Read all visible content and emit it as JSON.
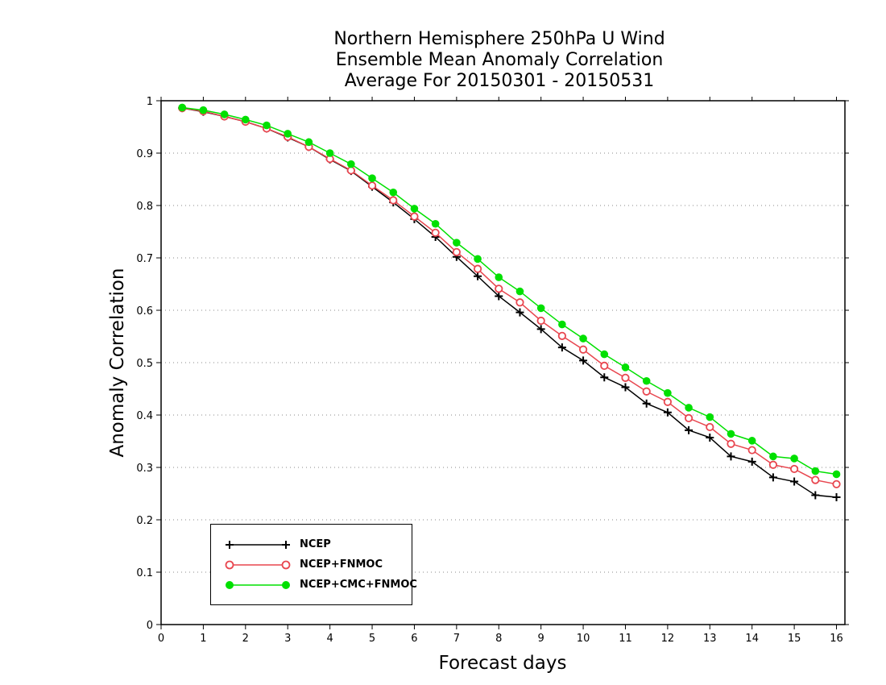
{
  "chart_data": {
    "type": "line",
    "title": [
      "Northern Hemisphere 250hPa U Wind",
      "Ensemble Mean Anomaly Correlation",
      "Average For 20150301 - 20150531"
    ],
    "xlabel": "Forecast days",
    "ylabel": "Anomaly Correlation",
    "xlim": [
      0,
      16.2
    ],
    "ylim": [
      0,
      1
    ],
    "xticks": [
      0,
      1,
      2,
      3,
      4,
      5,
      6,
      7,
      8,
      9,
      10,
      11,
      12,
      13,
      14,
      15,
      16
    ],
    "yticks": [
      0,
      0.1,
      0.2,
      0.3,
      0.4,
      0.5,
      0.6,
      0.7,
      0.8,
      0.9,
      1
    ],
    "ytick_labels": [
      "0",
      "0.1",
      "0.2",
      "0.3",
      "0.4",
      "0.5",
      "0.6",
      "0.7",
      "0.8",
      "0.9",
      "1"
    ],
    "grid": "horizontal dotted",
    "legend_position": "bottom-left",
    "x": [
      0.5,
      1,
      1.5,
      2,
      2.5,
      3,
      3.5,
      4,
      4.5,
      5,
      5.5,
      6,
      6.5,
      7,
      7.5,
      8,
      8.5,
      9,
      9.5,
      10,
      10.5,
      11,
      11.5,
      12,
      12.5,
      13,
      13.5,
      14,
      14.5,
      15,
      15.5,
      16
    ],
    "series": [
      {
        "name": "NCEP",
        "color": "#000000",
        "marker": "plus",
        "values": [
          0.986,
          0.979,
          0.97,
          0.96,
          0.947,
          0.93,
          0.912,
          0.888,
          0.866,
          0.836,
          0.806,
          0.774,
          0.74,
          0.702,
          0.665,
          0.627,
          0.596,
          0.564,
          0.529,
          0.504,
          0.472,
          0.453,
          0.422,
          0.405,
          0.371,
          0.357,
          0.321,
          0.311,
          0.281,
          0.273,
          0.247,
          0.243
        ]
      },
      {
        "name": "NCEP+FNMOC",
        "color": "#e8464f",
        "marker": "open-circle",
        "values": [
          0.986,
          0.98,
          0.97,
          0.96,
          0.947,
          0.931,
          0.912,
          0.889,
          0.867,
          0.838,
          0.81,
          0.779,
          0.748,
          0.711,
          0.679,
          0.641,
          0.615,
          0.58,
          0.551,
          0.525,
          0.494,
          0.471,
          0.445,
          0.425,
          0.394,
          0.377,
          0.345,
          0.333,
          0.305,
          0.297,
          0.276,
          0.268
        ]
      },
      {
        "name": "NCEP+CMC+FNMOC",
        "color": "#00e000",
        "marker": "filled-circle",
        "values": [
          0.987,
          0.982,
          0.974,
          0.964,
          0.953,
          0.937,
          0.921,
          0.9,
          0.879,
          0.852,
          0.825,
          0.794,
          0.765,
          0.729,
          0.698,
          0.663,
          0.636,
          0.604,
          0.573,
          0.546,
          0.516,
          0.491,
          0.465,
          0.442,
          0.414,
          0.396,
          0.364,
          0.351,
          0.321,
          0.317,
          0.293,
          0.287
        ]
      }
    ]
  }
}
